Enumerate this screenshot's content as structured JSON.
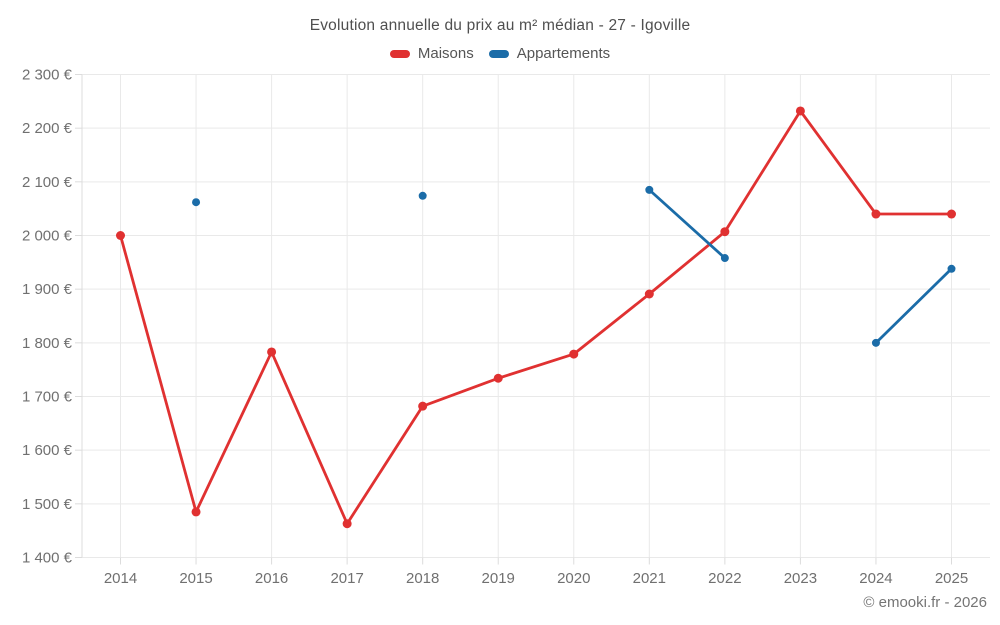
{
  "title": "Evolution annuelle du prix au m² médian - 27 - Igoville",
  "footer": "© emooki.fr - 2026",
  "colors": {
    "maisons": "#e03131",
    "appartements": "#1b6ca8",
    "grid": "#e9e9e9",
    "axis": "#dcdcdc",
    "tick_label": "#707070",
    "title_text": "#4f4f4f",
    "legend_text": "#555555",
    "footer_text": "#757575"
  },
  "legend": {
    "items": [
      {
        "label": "Maisons",
        "color": "#e03131"
      },
      {
        "label": "Appartements",
        "color": "#1b6ca8"
      }
    ]
  },
  "chart_data": {
    "type": "line",
    "title": "Evolution annuelle du prix au m² médian - 27 - Igoville",
    "categories": [
      "2014",
      "2015",
      "2016",
      "2017",
      "2018",
      "2019",
      "2020",
      "2021",
      "2022",
      "2023",
      "2024",
      "2025"
    ],
    "series": [
      {
        "name": "Maisons",
        "color": "#e03131",
        "marker_radius": 4.5,
        "values": [
          2000,
          1485,
          1783,
          1463,
          1682,
          1734,
          1779,
          1891,
          2007,
          2232,
          2040,
          2040
        ]
      },
      {
        "name": "Appartements",
        "color": "#1b6ca8",
        "marker_radius": 4,
        "values": [
          null,
          2062,
          null,
          null,
          2074,
          null,
          null,
          2085,
          1958,
          null,
          1800,
          1938
        ]
      }
    ],
    "ylim": [
      1400,
      2300
    ],
    "ytick_step": 100,
    "ytick_labels": [
      "1 400 €",
      "1 500 €",
      "1 600 €",
      "1 700 €",
      "1 800 €",
      "1 900 €",
      "2 000 €",
      "2 100 €",
      "2 200 €",
      "2 300 €"
    ],
    "ylabel": "",
    "xlabel": "",
    "grid": true,
    "legend_position": "top",
    "gap_handling": "break-on-null"
  }
}
